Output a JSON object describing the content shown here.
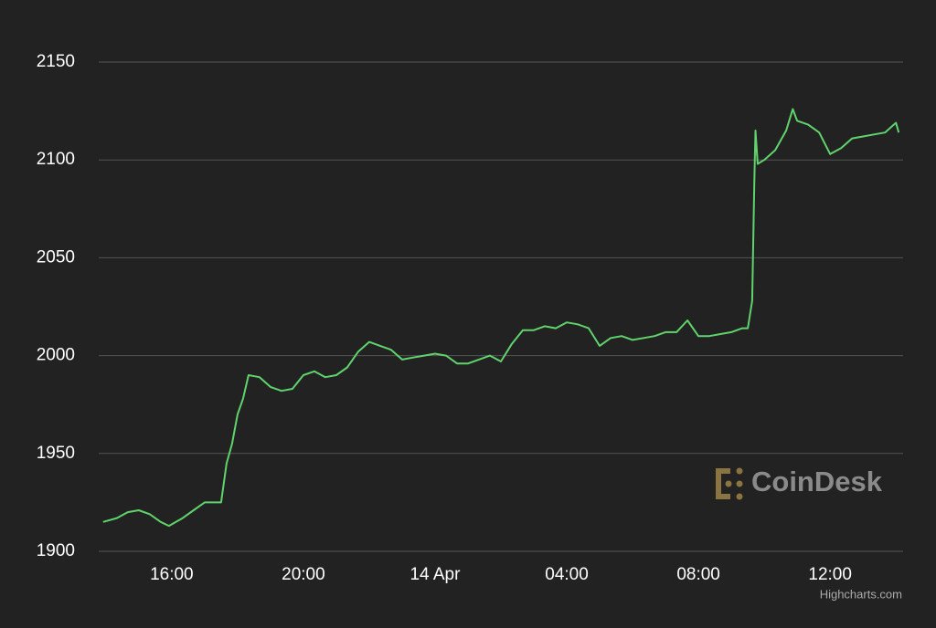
{
  "chart_data": {
    "type": "line",
    "x": [
      "13 Apr 13:55",
      "13 Apr 14:20",
      "13 Apr 14:40",
      "13 Apr 15:00",
      "13 Apr 15:20",
      "13 Apr 15:40",
      "13 Apr 15:55",
      "13 Apr 16:20",
      "13 Apr 16:40",
      "13 Apr 17:00",
      "13 Apr 17:20",
      "13 Apr 17:30",
      "13 Apr 17:40",
      "13 Apr 17:50",
      "13 Apr 18:00",
      "13 Apr 18:10",
      "13 Apr 18:20",
      "13 Apr 18:40",
      "13 Apr 19:00",
      "13 Apr 19:20",
      "13 Apr 19:40",
      "13 Apr 20:00",
      "13 Apr 20:20",
      "13 Apr 20:40",
      "13 Apr 21:00",
      "13 Apr 21:20",
      "13 Apr 21:40",
      "13 Apr 22:00",
      "13 Apr 22:20",
      "13 Apr 22:40",
      "13 Apr 23:00",
      "13 Apr 23:20",
      "13 Apr 23:40",
      "14 Apr 00:00",
      "14 Apr 00:20",
      "14 Apr 00:40",
      "14 Apr 01:00",
      "14 Apr 01:20",
      "14 Apr 01:40",
      "14 Apr 02:00",
      "14 Apr 02:20",
      "14 Apr 02:40",
      "14 Apr 03:00",
      "14 Apr 03:20",
      "14 Apr 03:40",
      "14 Apr 04:00",
      "14 Apr 04:20",
      "14 Apr 04:40",
      "14 Apr 05:00",
      "14 Apr 05:20",
      "14 Apr 05:40",
      "14 Apr 06:00",
      "14 Apr 06:20",
      "14 Apr 06:40",
      "14 Apr 07:00",
      "14 Apr 07:20",
      "14 Apr 07:40",
      "14 Apr 08:00",
      "14 Apr 08:20",
      "14 Apr 08:40",
      "14 Apr 09:00",
      "14 Apr 09:20",
      "14 Apr 09:30",
      "14 Apr 09:38",
      "14 Apr 09:42",
      "14 Apr 09:44",
      "14 Apr 09:48",
      "14 Apr 10:00",
      "14 Apr 10:20",
      "14 Apr 10:40",
      "14 Apr 10:52",
      "14 Apr 11:00",
      "14 Apr 11:20",
      "14 Apr 11:40",
      "14 Apr 12:00",
      "14 Apr 12:20",
      "14 Apr 12:40",
      "14 Apr 13:00",
      "14 Apr 13:20",
      "14 Apr 13:40",
      "14 Apr 14:00",
      "14 Apr 14:05"
    ],
    "series": [
      {
        "color": "#5fd46c",
        "values": [
          1915,
          1917,
          1920,
          1921,
          1919,
          1915,
          1913,
          1917,
          1921,
          1925,
          1925,
          1925,
          1945,
          1955,
          1970,
          1978,
          1990,
          1989,
          1984,
          1982,
          1983,
          1990,
          1992,
          1989,
          1990,
          1994,
          2002,
          2007,
          2005,
          2003,
          1998,
          1999,
          2000,
          2001,
          2000,
          1996,
          1996,
          1998,
          2000,
          1997,
          2006,
          2013,
          2013,
          2015,
          2014,
          2017,
          2016,
          2014,
          2005,
          2009,
          2010,
          2008,
          2009,
          2010,
          2012,
          2012,
          2018,
          2010,
          2010,
          2011,
          2012,
          2014,
          2014,
          2028,
          2090,
          2115,
          2098,
          2100,
          2105,
          2115,
          2126,
          2120,
          2118,
          2114,
          2103,
          2106,
          2111,
          2112,
          2113,
          2114,
          2119,
          2114
        ]
      }
    ],
    "xlim": [
      "13 Apr 13:47",
      "14 Apr 14:13"
    ],
    "xticks": [
      {
        "value": "13 Apr 16:00",
        "label": "16:00"
      },
      {
        "value": "13 Apr 20:00",
        "label": "20:00"
      },
      {
        "value": "14 Apr 00:00",
        "label": "14 Apr"
      },
      {
        "value": "14 Apr 04:00",
        "label": "04:00"
      },
      {
        "value": "14 Apr 08:00",
        "label": "08:00"
      },
      {
        "value": "14 Apr 12:00",
        "label": "12:00"
      }
    ],
    "ylim": [
      1900,
      2150
    ],
    "yticks": [
      1900,
      1950,
      2000,
      2050,
      2100,
      2150
    ],
    "grid": true,
    "watermark": "CoinDesk",
    "credits": "Highcharts.com"
  }
}
